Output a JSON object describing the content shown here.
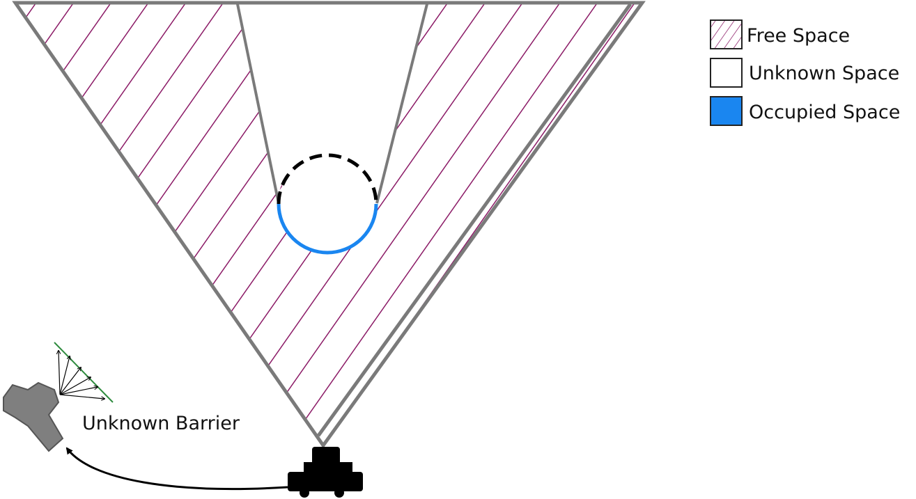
{
  "legend": {
    "items": [
      {
        "label": "Free Space",
        "swatch": "hatched",
        "color": "#8b1a66"
      },
      {
        "label": "Unknown Space",
        "swatch": "empty",
        "color": "#ffffff"
      },
      {
        "label": "Occupied Space",
        "swatch": "filled",
        "color": "#1a86f0"
      }
    ]
  },
  "annotations": {
    "barrier_label": "Unknown Barrier"
  },
  "colors": {
    "frustum_outline": "#7a7a7a",
    "free_hatch": "#8b1a66",
    "occupied": "#1a86f0",
    "barrier_body": "#7f7f7f",
    "barrier_normal": "#2e8b3e",
    "robot": "#000000"
  },
  "icons": {
    "robot": "camera-robot-icon",
    "barrier": "barrier-robot-icon"
  }
}
